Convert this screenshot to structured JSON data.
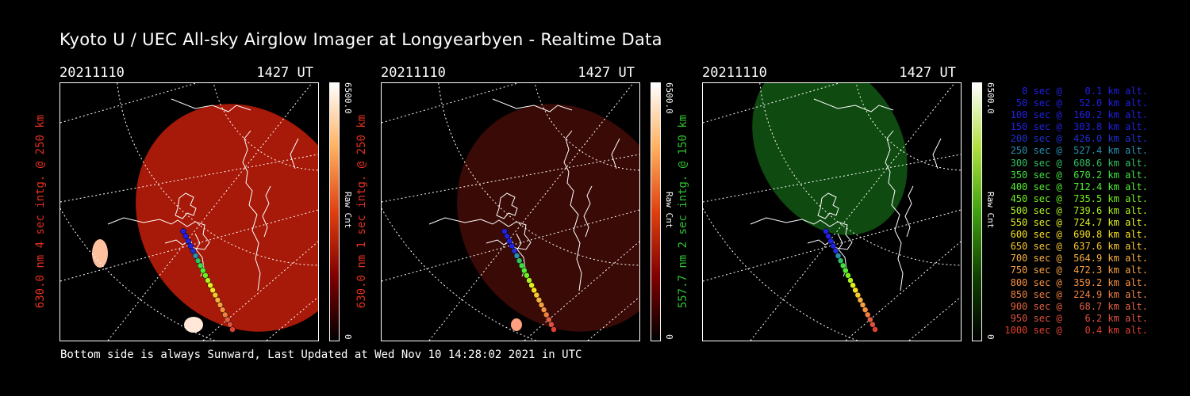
{
  "title": "Kyoto U / UEC All-sky Airglow Imager at Longyearbyen - Realtime Data",
  "footer": "Bottom side is always Sunward, Last Updated at Wed Nov 10 14:28:02 2021 in UTC",
  "panels": [
    {
      "date": "20211110",
      "ut": "1427 UT",
      "label": "630.0 nm 4 sec intg. @ 250 km",
      "label_color": "#e03020",
      "cb_max": "6500.0",
      "cb_min": "0",
      "cb_unit": "Raw Cnt",
      "colormap": "red",
      "cb_colors": [
        "#ffffff",
        "#ffb060",
        "#e04010",
        "#800000",
        "#000000"
      ]
    },
    {
      "date": "20211110",
      "ut": "1427 UT",
      "label": "630.0 nm 1 sec intg. @ 250 km",
      "label_color": "#e03020",
      "cb_max": "6500.0",
      "cb_min": "0",
      "cb_unit": "Raw Cnt",
      "colormap": "red",
      "cb_colors": [
        "#ffffff",
        "#ffb060",
        "#e04010",
        "#800000",
        "#000000"
      ]
    },
    {
      "date": "20211110",
      "ut": "1427 UT",
      "label": "557.7 nm 2 sec intg. @ 150 km",
      "label_color": "#30c030",
      "cb_max": "6500.0",
      "cb_min": "0",
      "cb_unit": "Raw Cnt",
      "colormap": "green",
      "cb_colors": [
        "#ffffff",
        "#b0e040",
        "#40a010",
        "#104000",
        "#000000"
      ]
    }
  ],
  "legend": [
    {
      "text": "   0 sec @    0.1 km alt.",
      "color": "#2020e0"
    },
    {
      "text": "  50 sec @   52.0 km alt.",
      "color": "#2020e0"
    },
    {
      "text": " 100 sec @  160.2 km alt.",
      "color": "#2020e0"
    },
    {
      "text": " 150 sec @  303.8 km alt.",
      "color": "#2020e0"
    },
    {
      "text": " 200 sec @  426.0 km alt.",
      "color": "#2030d0"
    },
    {
      "text": " 250 sec @  527.4 km alt.",
      "color": "#2a8fb0"
    },
    {
      "text": " 300 sec @  608.6 km alt.",
      "color": "#30c060"
    },
    {
      "text": " 350 sec @  670.2 km alt.",
      "color": "#40e040"
    },
    {
      "text": " 400 sec @  712.4 km alt.",
      "color": "#50f030"
    },
    {
      "text": " 450 sec @  735.5 km alt.",
      "color": "#70f020"
    },
    {
      "text": " 500 sec @  739.6 km alt.",
      "color": "#b0f020"
    },
    {
      "text": " 550 sec @  724.7 km alt.",
      "color": "#e0f020"
    },
    {
      "text": " 600 sec @  690.8 km alt.",
      "color": "#f8e020"
    },
    {
      "text": " 650 sec @  637.6 km alt.",
      "color": "#f8c830"
    },
    {
      "text": " 700 sec @  564.9 km alt.",
      "color": "#f8b040"
    },
    {
      "text": " 750 sec @  472.3 km alt.",
      "color": "#f8a040"
    },
    {
      "text": " 800 sec @  359.2 km alt.",
      "color": "#f89040"
    },
    {
      "text": " 850 sec @  224.9 km alt.",
      "color": "#f08040"
    },
    {
      "text": " 900 sec @   68.7 km alt.",
      "color": "#e06040"
    },
    {
      "text": " 950 sec @    6.2 km alt.",
      "color": "#e05040"
    },
    {
      "text": "1000 sec @    0.4 km alt.",
      "color": "#e04030"
    }
  ]
}
